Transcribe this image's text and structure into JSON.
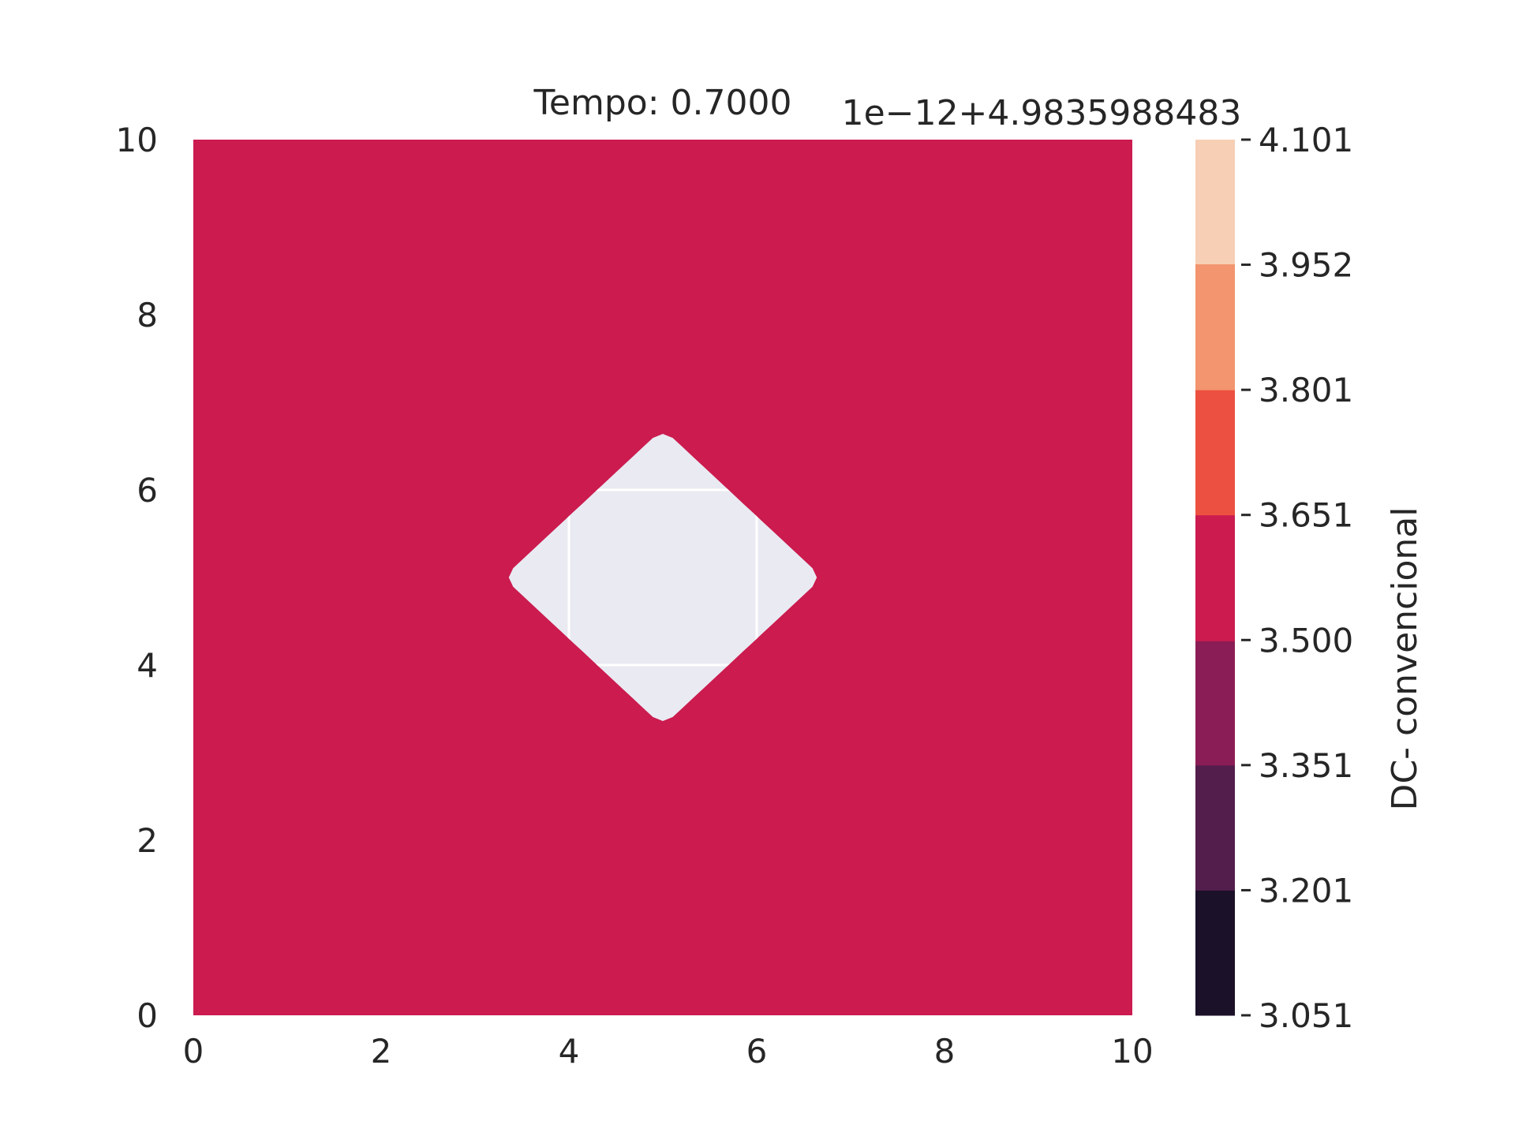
{
  "chart_data": {
    "type": "contour",
    "title": "Tempo: 0.7000",
    "colorbar_offset_label": "1e−12+4.9835988483",
    "colorbar_label": "DC- convencional",
    "xlim": [
      0,
      10
    ],
    "ylim": [
      0,
      10
    ],
    "x_ticks": [
      "0",
      "2",
      "4",
      "6",
      "8",
      "10"
    ],
    "y_ticks": [
      "0",
      "2",
      "4",
      "6",
      "8",
      "10"
    ],
    "grid": true,
    "field": {
      "background_value": 3.575,
      "background_color": "#cb1b4f",
      "unfilled_region": {
        "shape": "diamond",
        "center": [
          5.0,
          5.0
        ],
        "half_width_x": 1.7,
        "half_width_y": 1.7,
        "color": "#eaeaf2"
      }
    },
    "levels": [
      {
        "from": 3.051,
        "to": 3.201,
        "color": "#1b1128"
      },
      {
        "from": 3.201,
        "to": 3.351,
        "color": "#531e4b"
      },
      {
        "from": 3.351,
        "to": 3.5,
        "color": "#8b1d56"
      },
      {
        "from": 3.5,
        "to": 3.651,
        "color": "#cb1b4f"
      },
      {
        "from": 3.651,
        "to": 3.801,
        "color": "#ec5040"
      },
      {
        "from": 3.801,
        "to": 3.952,
        "color": "#f3956e"
      },
      {
        "from": 3.952,
        "to": 4.101,
        "color": "#f6cfb5"
      }
    ],
    "colorbar_ticks": [
      "3.051",
      "3.201",
      "3.351",
      "3.500",
      "3.651",
      "3.801",
      "3.952",
      "4.101"
    ]
  }
}
